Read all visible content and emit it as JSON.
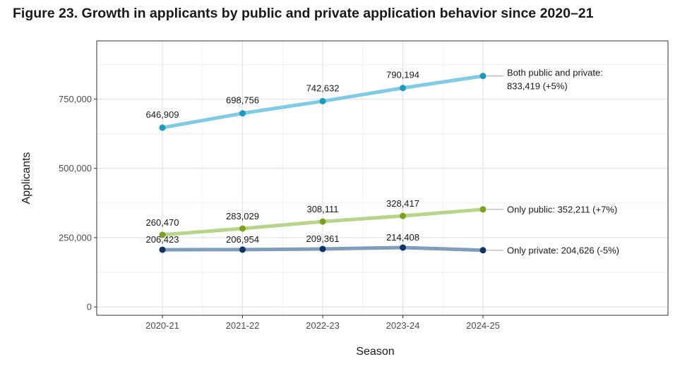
{
  "title": "Figure 23. Growth in applicants by public and private application behavior since 2020–21",
  "chart_data": {
    "type": "line",
    "xlabel": "Season",
    "ylabel": "Applicants",
    "categories": [
      "2020-21",
      "2021-22",
      "2022-23",
      "2023-24",
      "2024-25"
    ],
    "ylim": [
      -30000,
      960000
    ],
    "yticks": [
      0,
      250000,
      500000,
      750000
    ],
    "ytick_labels": [
      "0",
      "250,000",
      "500,000",
      "750,000"
    ],
    "grid": true,
    "series": [
      {
        "values": [
          646909,
          698756,
          742632,
          790194,
          833419
        ],
        "data_labels": [
          "646,909",
          "698,756",
          "742,632",
          "790,194"
        ],
        "end_label": [
          "Both public and private:",
          "833,419 (+5%)"
        ],
        "line_color": "#7ecbe3",
        "point_color": "#1a9bc4"
      },
      {
        "values": [
          260470,
          283029,
          308111,
          328417,
          352211
        ],
        "data_labels": [
          "260,470",
          "283,029",
          "308,111",
          "328,417"
        ],
        "end_label": [
          "Only public: 352,211 (+7%)"
        ],
        "line_color": "#b7d48b",
        "point_color": "#7da21c"
      },
      {
        "values": [
          206423,
          206954,
          209361,
          214408,
          204626
        ],
        "data_labels": [
          "206,423",
          "206,954",
          "209,361",
          "214,408"
        ],
        "end_label": [
          "Only private: 204,626 (-5%)"
        ],
        "line_color": "#7f9bbd",
        "point_color": "#0d3569"
      }
    ]
  }
}
